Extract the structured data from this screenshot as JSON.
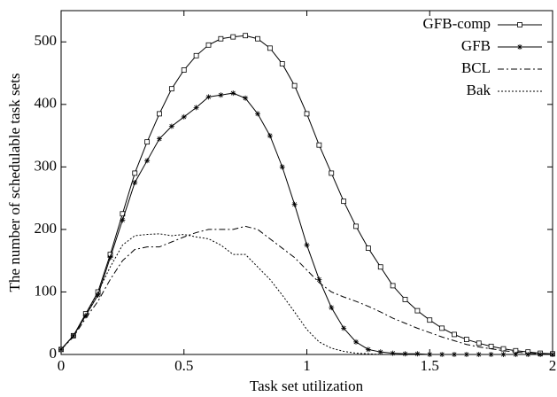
{
  "chart_data": {
    "type": "line",
    "xlabel": "Task set utilization",
    "ylabel": "The number of schedulable task sets",
    "x": [
      0,
      0.05,
      0.1,
      0.15,
      0.2,
      0.25,
      0.3,
      0.35,
      0.4,
      0.45,
      0.5,
      0.55,
      0.6,
      0.65,
      0.7,
      0.75,
      0.8,
      0.85,
      0.9,
      0.95,
      1.0,
      1.05,
      1.1,
      1.15,
      1.2,
      1.25,
      1.3,
      1.35,
      1.4,
      1.45,
      1.5,
      1.55,
      1.6,
      1.65,
      1.7,
      1.75,
      1.8,
      1.85,
      1.9,
      1.95,
      2.0
    ],
    "series": [
      {
        "name": "GFB-comp",
        "color": "#000000",
        "dash": "none",
        "marker": "square",
        "values": [
          8,
          30,
          65,
          100,
          160,
          225,
          290,
          340,
          385,
          425,
          455,
          478,
          495,
          505,
          508,
          510,
          505,
          490,
          465,
          430,
          385,
          335,
          290,
          245,
          205,
          170,
          140,
          110,
          88,
          70,
          55,
          42,
          32,
          24,
          18,
          13,
          9,
          6,
          4,
          2,
          1
        ]
      },
      {
        "name": "GFB",
        "color": "#000000",
        "dash": "none",
        "marker": "star",
        "values": [
          8,
          30,
          62,
          95,
          155,
          215,
          275,
          310,
          345,
          365,
          380,
          395,
          412,
          415,
          418,
          410,
          385,
          350,
          300,
          240,
          175,
          120,
          75,
          42,
          20,
          8,
          4,
          2,
          1,
          1,
          0,
          0,
          0,
          0,
          0,
          0,
          0,
          0,
          0,
          0,
          0
        ]
      },
      {
        "name": "BCL",
        "color": "#000000",
        "dash": "7 3 2 3",
        "marker": "none",
        "values": [
          8,
          28,
          58,
          85,
          120,
          150,
          168,
          172,
          172,
          180,
          188,
          195,
          200,
          200,
          200,
          205,
          200,
          185,
          170,
          155,
          135,
          115,
          100,
          92,
          85,
          77,
          68,
          58,
          50,
          42,
          35,
          28,
          22,
          16,
          12,
          9,
          6,
          4,
          2,
          1,
          0
        ]
      },
      {
        "name": "Bak",
        "color": "#000000",
        "dash": "2 2",
        "marker": "none",
        "values": [
          8,
          30,
          62,
          100,
          140,
          175,
          190,
          192,
          193,
          190,
          192,
          188,
          185,
          175,
          160,
          160,
          140,
          120,
          95,
          68,
          40,
          20,
          10,
          5,
          2,
          1,
          0,
          0,
          0,
          0,
          0,
          0,
          0,
          0,
          0,
          0,
          0,
          0,
          0,
          0,
          0
        ]
      }
    ],
    "xlim": [
      0,
      2
    ],
    "xticks": [
      0,
      0.5,
      1,
      1.5,
      2
    ],
    "ylim": [
      0,
      550
    ],
    "yticks": [
      0,
      100,
      200,
      300,
      400,
      500
    ],
    "legend": "upper right",
    "grid": false
  }
}
